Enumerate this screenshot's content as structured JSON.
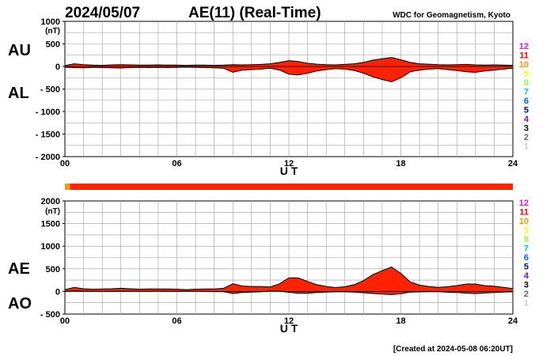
{
  "header": {
    "date": "2024/05/07",
    "title": "AE(11) (Real-Time)",
    "source": "WDC for Geomagnetism, Kyoto"
  },
  "footer": {
    "created": "[Created at 2024-05-08 06:20UT]"
  },
  "station_counts": {
    "labels": [
      "12",
      "11",
      "10",
      "9",
      "8",
      "7",
      "6",
      "5",
      "4",
      "3",
      "2",
      "1"
    ],
    "colors": [
      "#ff00ff",
      "#ff0000",
      "#ff9900",
      "#ffff00",
      "#99ff33",
      "#00cccc",
      "#0066ff",
      "#0000cc",
      "#9900cc",
      "#000000",
      "#666666",
      "#cccccc"
    ]
  },
  "status_bar": {
    "colors": [
      "#ff9900",
      "#ff2200"
    ],
    "transition_hour": 0.15
  },
  "chart_data": [
    {
      "type": "area",
      "series": [
        {
          "name": "AU",
          "x_hours": [
            0,
            0.5,
            1,
            1.5,
            2,
            2.5,
            3,
            3.5,
            4,
            4.5,
            5,
            5.5,
            6,
            6.5,
            7,
            7.5,
            8,
            8.5,
            9,
            9.5,
            10,
            10.5,
            11,
            11.5,
            12,
            12.5,
            13,
            13.5,
            14,
            14.5,
            15,
            15.5,
            16,
            16.5,
            17,
            17.5,
            18,
            18.5,
            19,
            19.5,
            20,
            20.5,
            21,
            21.5,
            22,
            22.5,
            23,
            23.5,
            24
          ],
          "values": [
            20,
            60,
            40,
            30,
            25,
            35,
            40,
            35,
            30,
            30,
            35,
            30,
            30,
            25,
            30,
            30,
            25,
            30,
            40,
            35,
            40,
            45,
            60,
            90,
            130,
            110,
            70,
            50,
            40,
            35,
            45,
            60,
            90,
            140,
            170,
            200,
            150,
            90,
            60,
            50,
            40,
            35,
            40,
            45,
            35,
            30,
            35,
            30,
            25
          ]
        },
        {
          "name": "AL",
          "x_hours": [
            0,
            0.5,
            1,
            1.5,
            2,
            2.5,
            3,
            3.5,
            4,
            4.5,
            5,
            5.5,
            6,
            6.5,
            7,
            7.5,
            8,
            8.5,
            9,
            9.5,
            10,
            10.5,
            11,
            11.5,
            12,
            12.5,
            13,
            13.5,
            14,
            14.5,
            15,
            15.5,
            16,
            16.5,
            17,
            17.5,
            18,
            18.5,
            19,
            19.5,
            20,
            20.5,
            21,
            21.5,
            22,
            22.5,
            23,
            23.5,
            24
          ],
          "values": [
            -20,
            -25,
            -30,
            -20,
            -25,
            -30,
            -35,
            -25,
            -20,
            -25,
            -20,
            -25,
            -20,
            -15,
            -20,
            -25,
            -30,
            -40,
            -130,
            -80,
            -70,
            -60,
            -40,
            -80,
            -170,
            -190,
            -150,
            -100,
            -70,
            -50,
            -60,
            -90,
            -150,
            -230,
            -290,
            -340,
            -250,
            -120,
            -80,
            -60,
            -50,
            -70,
            -90,
            -120,
            -130,
            -100,
            -80,
            -60,
            -40
          ]
        }
      ],
      "xlabel": "U T",
      "ylabel": "(nT)",
      "panel_labels": [
        "AU",
        "AL"
      ],
      "x_ticks": [
        "00",
        "06",
        "12",
        "18",
        "24"
      ],
      "y_ticks": [
        "1000",
        "500",
        "0",
        "- 500",
        "- 1000",
        "- 1500",
        "- 2000"
      ],
      "ylim": [
        -2000,
        1000
      ],
      "xlim": [
        0,
        24
      ],
      "grid": true,
      "fill_color": "#ff2200"
    },
    {
      "type": "area",
      "series": [
        {
          "name": "AE",
          "x_hours": [
            0,
            0.5,
            1,
            1.5,
            2,
            2.5,
            3,
            3.5,
            4,
            4.5,
            5,
            5.5,
            6,
            6.5,
            7,
            7.5,
            8,
            8.5,
            9,
            9.5,
            10,
            10.5,
            11,
            11.5,
            12,
            12.5,
            13,
            13.5,
            14,
            14.5,
            15,
            15.5,
            16,
            16.5,
            17,
            17.5,
            18,
            18.5,
            19,
            19.5,
            20,
            20.5,
            21,
            21.5,
            22,
            22.5,
            23,
            23.5,
            24
          ],
          "values": [
            40,
            90,
            60,
            50,
            55,
            60,
            70,
            60,
            50,
            55,
            55,
            55,
            50,
            40,
            50,
            55,
            55,
            70,
            170,
            120,
            110,
            110,
            100,
            170,
            300,
            300,
            220,
            150,
            110,
            85,
            105,
            150,
            240,
            370,
            460,
            540,
            400,
            210,
            140,
            110,
            90,
            105,
            130,
            165,
            165,
            130,
            115,
            90,
            65
          ]
        },
        {
          "name": "AO",
          "x_hours": [
            0,
            0.5,
            1,
            1.5,
            2,
            2.5,
            3,
            3.5,
            4,
            4.5,
            5,
            5.5,
            6,
            6.5,
            7,
            7.5,
            8,
            8.5,
            9,
            9.5,
            10,
            10.5,
            11,
            11.5,
            12,
            12.5,
            13,
            13.5,
            14,
            14.5,
            15,
            15.5,
            16,
            16.5,
            17,
            17.5,
            18,
            18.5,
            19,
            19.5,
            20,
            20.5,
            21,
            21.5,
            22,
            22.5,
            23,
            23.5,
            24
          ],
          "values": [
            0,
            18,
            5,
            5,
            0,
            3,
            3,
            5,
            5,
            3,
            8,
            3,
            5,
            5,
            5,
            3,
            -3,
            -5,
            -45,
            -23,
            -15,
            -8,
            10,
            5,
            -20,
            -40,
            -40,
            -25,
            -15,
            -8,
            -8,
            -15,
            -30,
            -45,
            -60,
            -70,
            -50,
            -15,
            -10,
            -5,
            -5,
            -18,
            -25,
            -38,
            -48,
            -35,
            -23,
            -15,
            -8
          ]
        }
      ],
      "xlabel": "U T",
      "ylabel": "(nT)",
      "panel_labels": [
        "AE",
        "AO"
      ],
      "x_ticks": [
        "00",
        "06",
        "12",
        "18",
        "24"
      ],
      "y_ticks": [
        "2000",
        "1500",
        "1000",
        "500",
        "0",
        "- 500"
      ],
      "ylim": [
        -500,
        2000
      ],
      "xlim": [
        0,
        24
      ],
      "grid": true,
      "fill_color": "#ff2200"
    }
  ]
}
